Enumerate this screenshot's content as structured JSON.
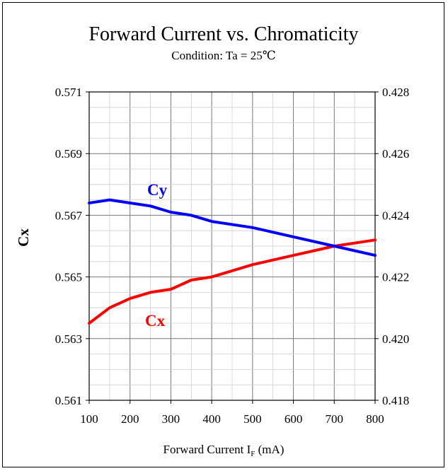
{
  "chart_data": {
    "type": "line",
    "title": "Forward Current vs. Chromaticity",
    "subtitle": "Condition: Ta = 25℃",
    "xlabel_main": "Forward Current I",
    "xlabel_sub": "F",
    "xlabel_unit": " (mA)",
    "ylabel": "Cx",
    "xlim": [
      100,
      800
    ],
    "ylim": [
      0.561,
      0.571
    ],
    "ylim_right": [
      0.418,
      0.428
    ],
    "x_ticks": [
      "100",
      "200",
      "300",
      "400",
      "500",
      "600",
      "700",
      "800"
    ],
    "y_ticks": [
      "0.561",
      "0.563",
      "0.565",
      "0.567",
      "0.569",
      "0.571"
    ],
    "y_ticks_right": [
      "0.418",
      "0.420",
      "0.422",
      "0.424",
      "0.426",
      "0.428"
    ],
    "grid": true,
    "series": [
      {
        "name": "Cx",
        "axis": "left",
        "color": "#ff0000",
        "x": [
          100,
          150,
          200,
          250,
          300,
          350,
          400,
          500,
          600,
          700,
          800
        ],
        "y": [
          0.5635,
          0.564,
          0.5643,
          0.5645,
          0.5646,
          0.5649,
          0.565,
          0.5654,
          0.5657,
          0.566,
          0.5662
        ]
      },
      {
        "name": "Cy",
        "axis": "right",
        "color": "#0000ff",
        "x": [
          100,
          150,
          200,
          250,
          300,
          350,
          400,
          500,
          600,
          700,
          800
        ],
        "y": [
          0.4244,
          0.4245,
          0.4244,
          0.4243,
          0.4241,
          0.424,
          0.4238,
          0.4236,
          0.4233,
          0.423,
          0.4227
        ]
      }
    ]
  }
}
